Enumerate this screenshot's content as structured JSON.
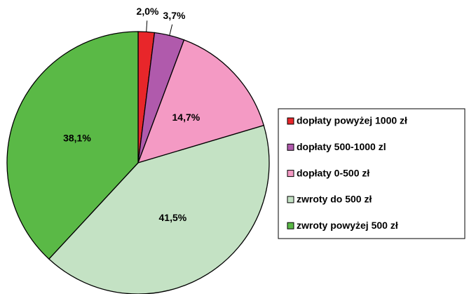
{
  "chart_data": {
    "type": "pie",
    "categories": [
      "dopłaty powyżej 1000 zł",
      "dopłaty 500-1000 zl",
      "dopłaty  0-500 zł",
      "zwroty  do 500 zł",
      "zwroty powyżej 500 zł"
    ],
    "values": [
      2.0,
      3.7,
      14.7,
      41.5,
      38.1
    ],
    "value_labels": [
      "2,0%",
      "3,7%",
      "14,7%",
      "41,5%",
      "38,1%"
    ],
    "colors": [
      "#e8262a",
      "#b05aac",
      "#f49ac4",
      "#c4e2c4",
      "#5ab946"
    ],
    "legend": "right"
  }
}
